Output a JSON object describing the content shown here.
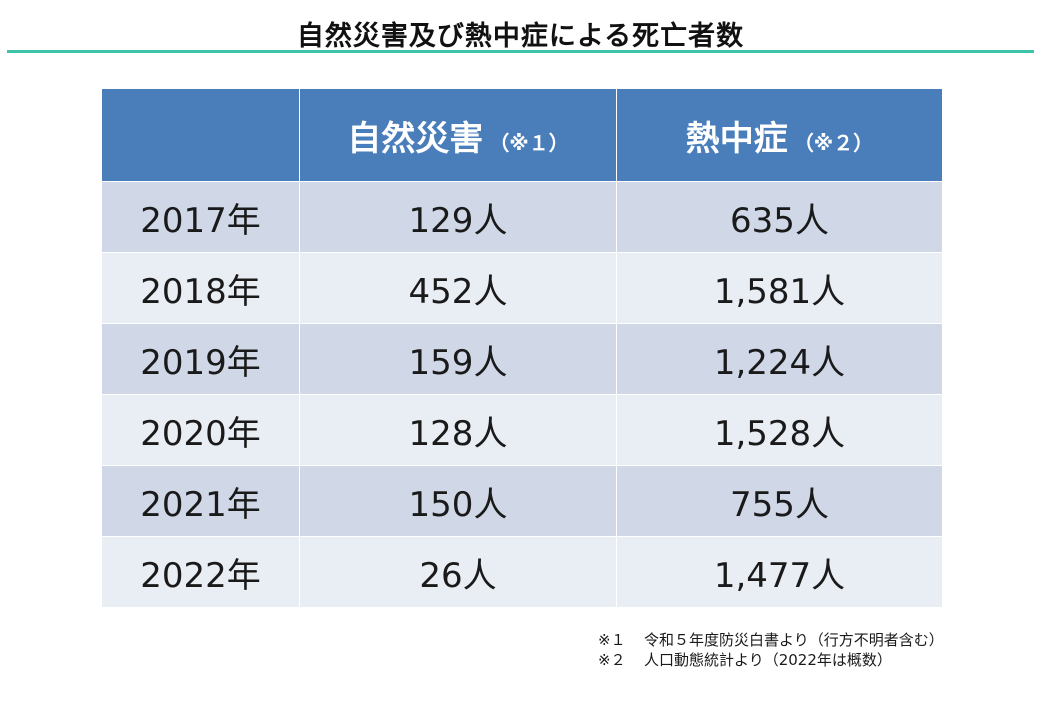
{
  "page": {
    "title": "自然災害及び熱中症による死亡者数"
  },
  "colors": {
    "title_rule": "#3cc3a8",
    "header_bg": "#4a7ebb",
    "row_band_a": "#d0d8e8",
    "row_band_b": "#e9edf4"
  },
  "table": {
    "header": {
      "year": "",
      "natural": "自然災害",
      "natural_note": "（※１）",
      "heat": "熱中症",
      "heat_note": "（※２）"
    },
    "rows": [
      {
        "year": "2017年",
        "natural": "129人",
        "heat": "635人"
      },
      {
        "year": "2018年",
        "natural": "452人",
        "heat": "1,581人"
      },
      {
        "year": "2019年",
        "natural": "159人",
        "heat": "1,224人"
      },
      {
        "year": "2020年",
        "natural": "128人",
        "heat": "1,528人"
      },
      {
        "year": "2021年",
        "natural": "150人",
        "heat": "755人"
      },
      {
        "year": "2022年",
        "natural": "26人",
        "heat": "1,477人"
      }
    ]
  },
  "notes": [
    {
      "mark": "※１",
      "text": "令和５年度防災白書より（行方不明者含む）"
    },
    {
      "mark": "※２",
      "text": "人口動態統計より（2022年は概数）"
    }
  ]
}
